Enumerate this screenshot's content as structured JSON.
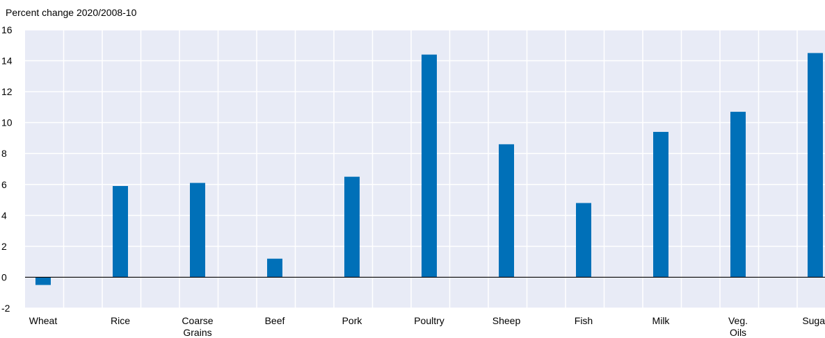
{
  "chart_data": {
    "type": "bar",
    "title": "",
    "ylabel": "Percent change 2020/2008-10",
    "xlabel": "",
    "categories": [
      "Wheat",
      "Rice",
      "Coarse Grains",
      "Beef",
      "Pork",
      "Poultry",
      "Sheep",
      "Fish",
      "Milk",
      "Veg. Oils",
      "Sugar"
    ],
    "category_lines": [
      [
        "Wheat"
      ],
      [
        "Rice"
      ],
      [
        "Coarse",
        "Grains"
      ],
      [
        "Beef"
      ],
      [
        "Pork"
      ],
      [
        "Poultry"
      ],
      [
        "Sheep"
      ],
      [
        "Fish"
      ],
      [
        "Milk"
      ],
      [
        "Veg.",
        "Oils"
      ],
      [
        "Sugar"
      ]
    ],
    "values": [
      -0.5,
      5.9,
      6.1,
      1.2,
      6.5,
      14.4,
      8.6,
      4.8,
      9.4,
      10.7,
      14.5
    ],
    "ylim": [
      -2,
      16
    ],
    "yticks": [
      -2,
      0,
      2,
      4,
      6,
      8,
      10,
      12,
      14,
      16
    ],
    "grid": true,
    "legend": "none",
    "colors": {
      "bar": "#0070b8",
      "plot_bg": "#e8ebf6",
      "grid": "#ffffff",
      "zero_line": "#000000"
    }
  }
}
